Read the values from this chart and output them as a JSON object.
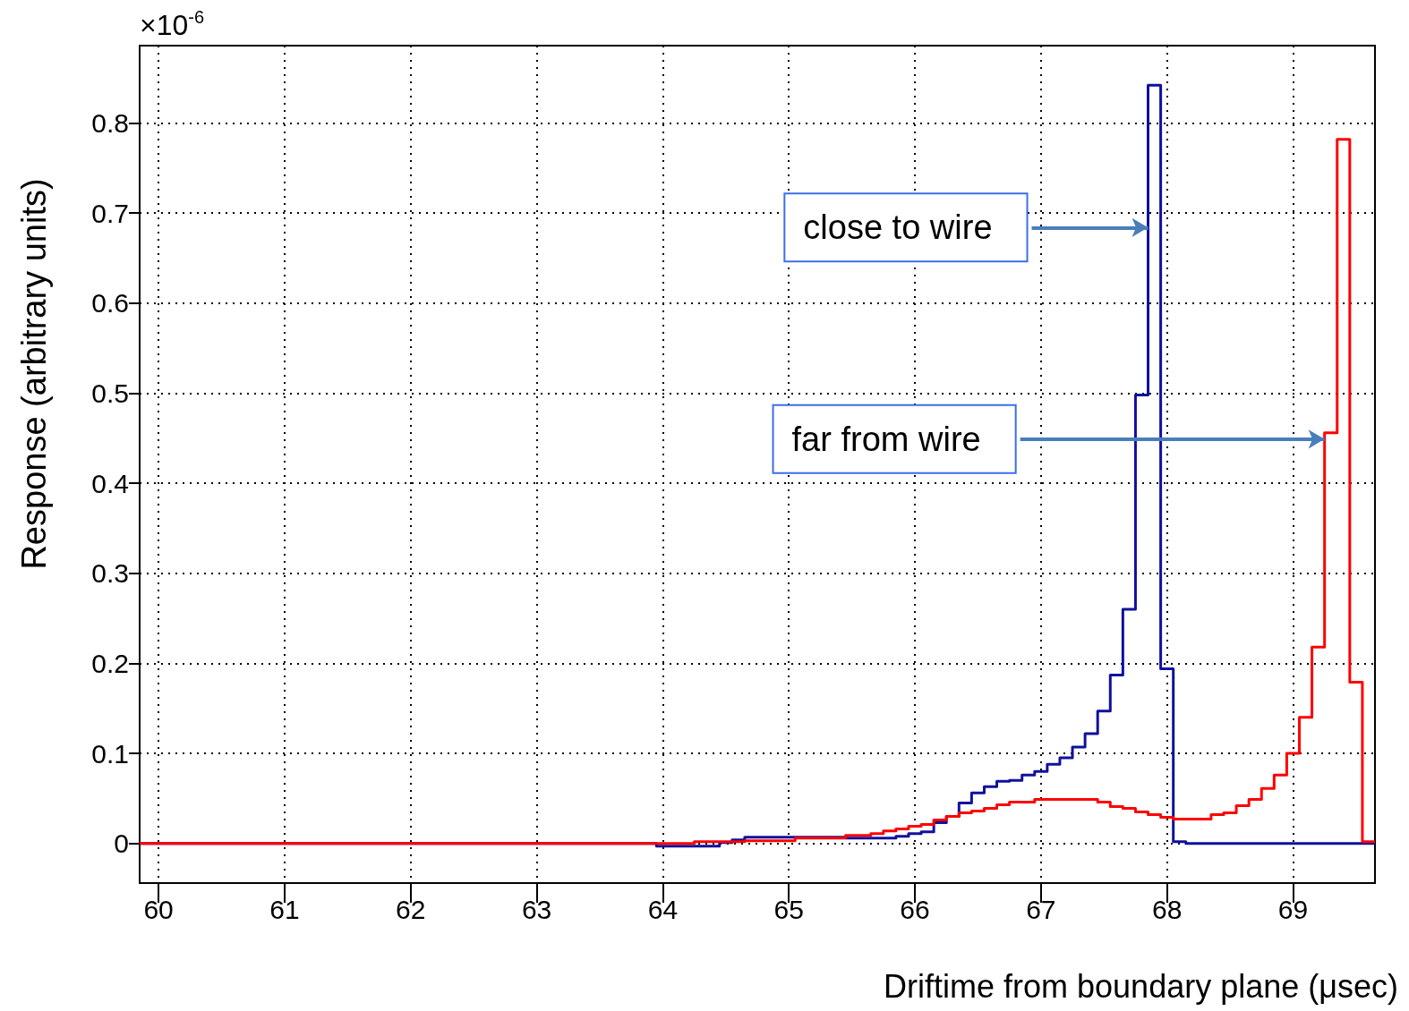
{
  "chart_data": {
    "type": "histogram",
    "xlabel": "Driftime from boundary plane (μsec)",
    "ylabel": "Response (arbitrary units)",
    "annotations": [
      "×10$^{-6}$",
      {
        "text": "close to wire",
        "x": 67.85,
        "y": 0.684
      },
      {
        "text": "far from wire",
        "x": 69.25,
        "y": 0.449
      }
    ],
    "bins": [
      59.85,
      59.95,
      60.05,
      60.15,
      60.25,
      60.35,
      60.45,
      60.55,
      60.65,
      60.75,
      60.85,
      60.95,
      61.05,
      61.15,
      61.25,
      61.35,
      61.45,
      61.55,
      61.65,
      61.75,
      61.85,
      61.95,
      62.05,
      62.15,
      62.25,
      62.35,
      62.45,
      62.55,
      62.65,
      62.75,
      62.85,
      62.95,
      63.05,
      63.15,
      63.25,
      63.35,
      63.45,
      63.55,
      63.65,
      63.75,
      63.85,
      63.95,
      64.05,
      64.15,
      64.25,
      64.35,
      64.45,
      64.55,
      64.65,
      64.75,
      64.85,
      64.95,
      65.05,
      65.15,
      65.25,
      65.35,
      65.45,
      65.55,
      65.65,
      65.75,
      65.85,
      65.95,
      66.05,
      66.15,
      66.25,
      66.35,
      66.45,
      66.55,
      66.65,
      66.75,
      66.85,
      66.95,
      67.05,
      67.15,
      67.25,
      67.35,
      67.45,
      67.55,
      67.65,
      67.75,
      67.85,
      67.95,
      68.05,
      68.15,
      68.25,
      68.35,
      68.45,
      68.55,
      68.65,
      68.75,
      68.85,
      68.95,
      69.05,
      69.15,
      69.25,
      69.35,
      69.45,
      69.55,
      69.65
    ],
    "series": [
      {
        "color": "#10109e",
        "values": [
          0,
          0,
          0,
          0,
          0,
          0,
          0,
          0,
          0,
          0,
          0,
          0,
          0,
          0,
          0,
          0,
          0,
          0,
          0,
          0,
          0,
          0,
          0,
          0,
          0,
          0,
          0,
          0,
          0,
          0,
          0,
          0,
          0,
          0,
          0,
          0,
          0,
          0,
          0,
          0,
          0,
          -0.003,
          -0.003,
          -0.003,
          -0.003,
          -0.003,
          0.001,
          0.004,
          0.007,
          0.007,
          0.007,
          0.007,
          0.007,
          0.007,
          0.007,
          0.007,
          0.006,
          0.006,
          0.006,
          0.006,
          0.008,
          0.011,
          0.013,
          0.023,
          0.03,
          0.045,
          0.056,
          0.063,
          0.069,
          0.07,
          0.076,
          0.08,
          0.088,
          0.095,
          0.107,
          0.122,
          0.147,
          0.187,
          0.26,
          0.498,
          0.842,
          0.194,
          0.002,
          0,
          0,
          0,
          0,
          0,
          0,
          0,
          0,
          0,
          0,
          0,
          0,
          0,
          0,
          0
        ]
      },
      {
        "color": "#ff0000",
        "values": [
          0,
          0,
          0,
          0,
          0,
          0,
          0,
          0,
          0,
          0,
          0,
          0,
          0,
          0,
          0,
          0,
          0,
          0,
          0,
          0,
          0,
          0,
          0,
          0,
          0,
          0,
          0,
          0,
          0,
          0,
          0,
          0,
          0,
          0,
          0,
          0,
          0,
          0,
          0,
          0,
          0,
          0,
          0,
          0,
          0.002,
          0.002,
          0.002,
          0.002,
          0.003,
          0.003,
          0.003,
          0.003,
          0.006,
          0.006,
          0.006,
          0.006,
          0.009,
          0.009,
          0.011,
          0.014,
          0.016,
          0.019,
          0.021,
          0.026,
          0.03,
          0.034,
          0.036,
          0.039,
          0.043,
          0.046,
          0.046,
          0.049,
          0.049,
          0.049,
          0.049,
          0.049,
          0.046,
          0.041,
          0.039,
          0.035,
          0.032,
          0.029,
          0.027,
          0.027,
          0.027,
          0.032,
          0.034,
          0.042,
          0.049,
          0.061,
          0.076,
          0.1,
          0.14,
          0.218,
          0.456,
          0.782,
          0.179,
          0.002
        ]
      }
    ],
    "xlim": [
      59.85,
      69.65
    ],
    "xticks": [
      60,
      61,
      62,
      63,
      64,
      65,
      66,
      67,
      68,
      69
    ],
    "ylim": [
      -0.044,
      0.886
    ],
    "yticks": [
      0,
      0.1,
      0.2,
      0.3,
      0.4,
      0.5,
      0.6,
      0.7,
      0.8
    ],
    "grid": true,
    "marker": "none",
    "line_style": "solid"
  }
}
